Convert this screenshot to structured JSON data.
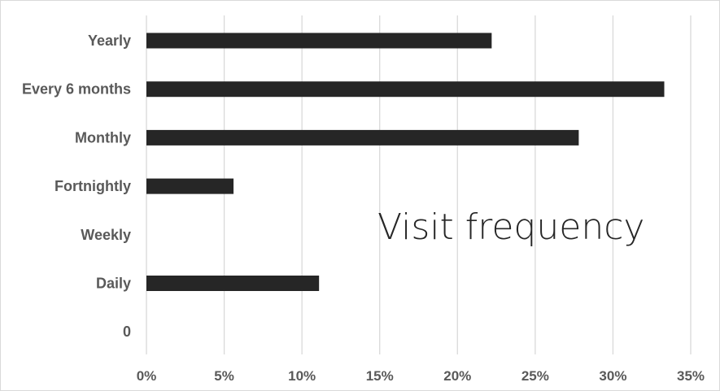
{
  "chart_data": {
    "type": "bar",
    "orientation": "horizontal",
    "title": "Visit frequency",
    "categories": [
      "Yearly",
      "Every 6 months",
      "Monthly",
      "Fortnightly",
      "Weekly",
      "Daily",
      "0"
    ],
    "values": [
      22.2,
      33.3,
      27.8,
      5.6,
      0,
      11.1,
      0
    ],
    "xlim": [
      0,
      35
    ],
    "x_ticks": [
      "0%",
      "5%",
      "10%",
      "15%",
      "20%",
      "25%",
      "30%",
      "35%"
    ],
    "x_tick_values": [
      0,
      5,
      10,
      15,
      20,
      25,
      30,
      35
    ],
    "value_unit": "%",
    "xlabel": "",
    "ylabel": "",
    "grid": "vertical",
    "legend": "none",
    "bar_color": "#262626"
  }
}
